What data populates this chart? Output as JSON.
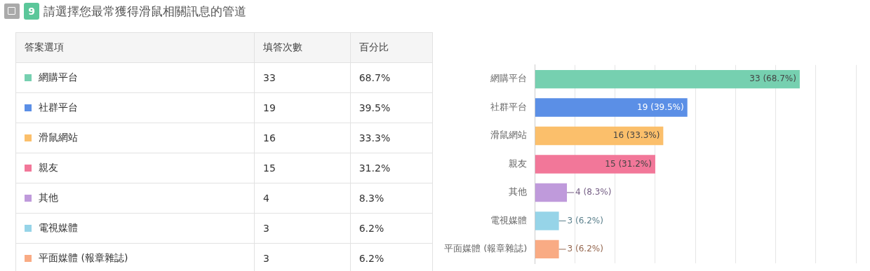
{
  "chart_data": [
    {
      "type": "other",
      "title": "請選擇您最常獲得滑鼠相關訊息的管道",
      "annotations": [
        "9",
        "答案選項",
        "填答次數",
        "百分比",
        "網購平台",
        "33",
        "68.7%",
        "社群平台",
        "19",
        "39.5%",
        "滑鼠網站",
        "16",
        "33.3%",
        "親友",
        "15",
        "31.2%",
        "其他",
        "4",
        "8.3%",
        "電視媒體",
        "3",
        "6.2%",
        "平面媒體 (報章雜誌)",
        "3",
        "6.2%"
      ]
    },
    {
      "type": "bar",
      "orientation": "horizontal",
      "categories": [
        "網購平台",
        "社群平台",
        "滑鼠網站",
        "親友",
        "其他",
        "電視媒體",
        "平面媒體 (報章雜誌)"
      ],
      "values": [
        33,
        19,
        16,
        15,
        4,
        3,
        3
      ],
      "colors": [
        "#76d0b0",
        "#5b8fe6",
        "#fbbf6b",
        "#f27799",
        "#bf9adb",
        "#96d4e8",
        "#f9ab84"
      ],
      "value_labels": [
        "33 (68.7%)",
        "19 (39.5%)",
        "16 (33.3%)",
        "15 (31.2%)",
        "4 (8.3%)",
        "3 (6.2%)",
        "3 (6.2%)"
      ],
      "xlim": [
        0,
        40
      ],
      "xticks": [
        {
          "value": 0,
          "label": null
        },
        {
          "value": 5,
          "label": null
        },
        {
          "value": 10,
          "label": null
        },
        {
          "value": 15,
          "label": null
        },
        {
          "value": 20,
          "label": null
        },
        {
          "value": 25,
          "label": null
        },
        {
          "value": 30,
          "label": null
        },
        {
          "value": 35,
          "label": null
        },
        {
          "value": 40,
          "label": null
        }
      ],
      "grid": "x",
      "tick_labels": "y"
    }
  ]
}
